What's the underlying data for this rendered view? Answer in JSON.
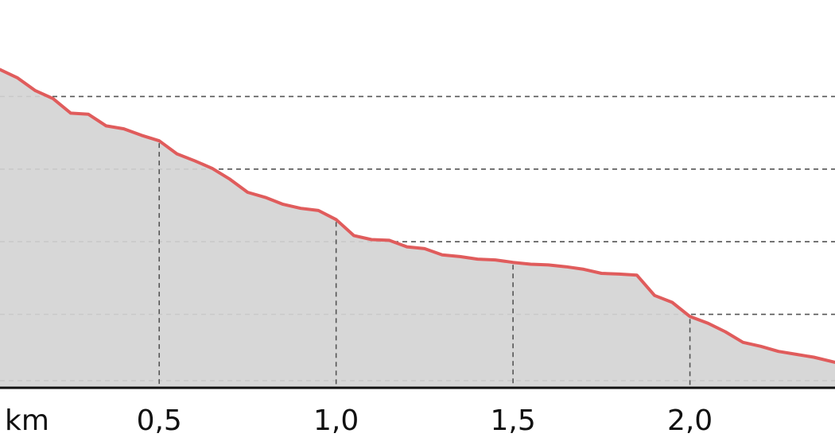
{
  "chart_data": {
    "type": "area",
    "x_unit_label": "km",
    "x_ticks": [
      {
        "value": 0.5,
        "label": "0,5"
      },
      {
        "value": 1.0,
        "label": "1,0"
      },
      {
        "value": 1.5,
        "label": "1,5"
      },
      {
        "value": 2.0,
        "label": "2,0"
      }
    ],
    "xlim": [
      0.05,
      2.41
    ],
    "ylim": [
      0,
      100
    ],
    "y_grid": [
      20,
      40,
      60,
      80
    ],
    "grid": true,
    "colors": {
      "line": "#e05c5c",
      "fill": "#d4d4d4",
      "grid": "#555555",
      "axis": "#111111"
    },
    "series": [
      {
        "x": [
          0.05,
          0.1,
          0.15,
          0.2,
          0.25,
          0.3,
          0.35,
          0.4,
          0.45,
          0.5,
          0.55,
          0.6,
          0.65,
          0.7,
          0.75,
          0.8,
          0.85,
          0.9,
          0.95,
          1.0,
          1.05,
          1.1,
          1.15,
          1.2,
          1.25,
          1.3,
          1.35,
          1.4,
          1.45,
          1.5,
          1.55,
          1.6,
          1.65,
          1.7,
          1.75,
          1.8,
          1.85,
          1.9,
          1.95,
          2.0,
          2.05,
          2.1,
          2.15,
          2.2,
          2.25,
          2.3,
          2.35,
          2.41
        ],
        "y": [
          87.4,
          85.1,
          81.6,
          79.4,
          75.4,
          75.1,
          71.9,
          71.1,
          69.3,
          67.8,
          64.2,
          62.3,
          60.2,
          57.2,
          53.6,
          52.2,
          50.3,
          49.2,
          48.6,
          46.1,
          41.7,
          40.6,
          40.4,
          38.6,
          38.1,
          36.4,
          35.9,
          35.2,
          35.0,
          34.3,
          33.8,
          33.6,
          33.1,
          32.4,
          31.3,
          31.1,
          30.8,
          25.2,
          23.3,
          19.4,
          17.6,
          15.2,
          12.3,
          11.2,
          9.8,
          9.0,
          8.2,
          6.8
        ]
      }
    ]
  }
}
